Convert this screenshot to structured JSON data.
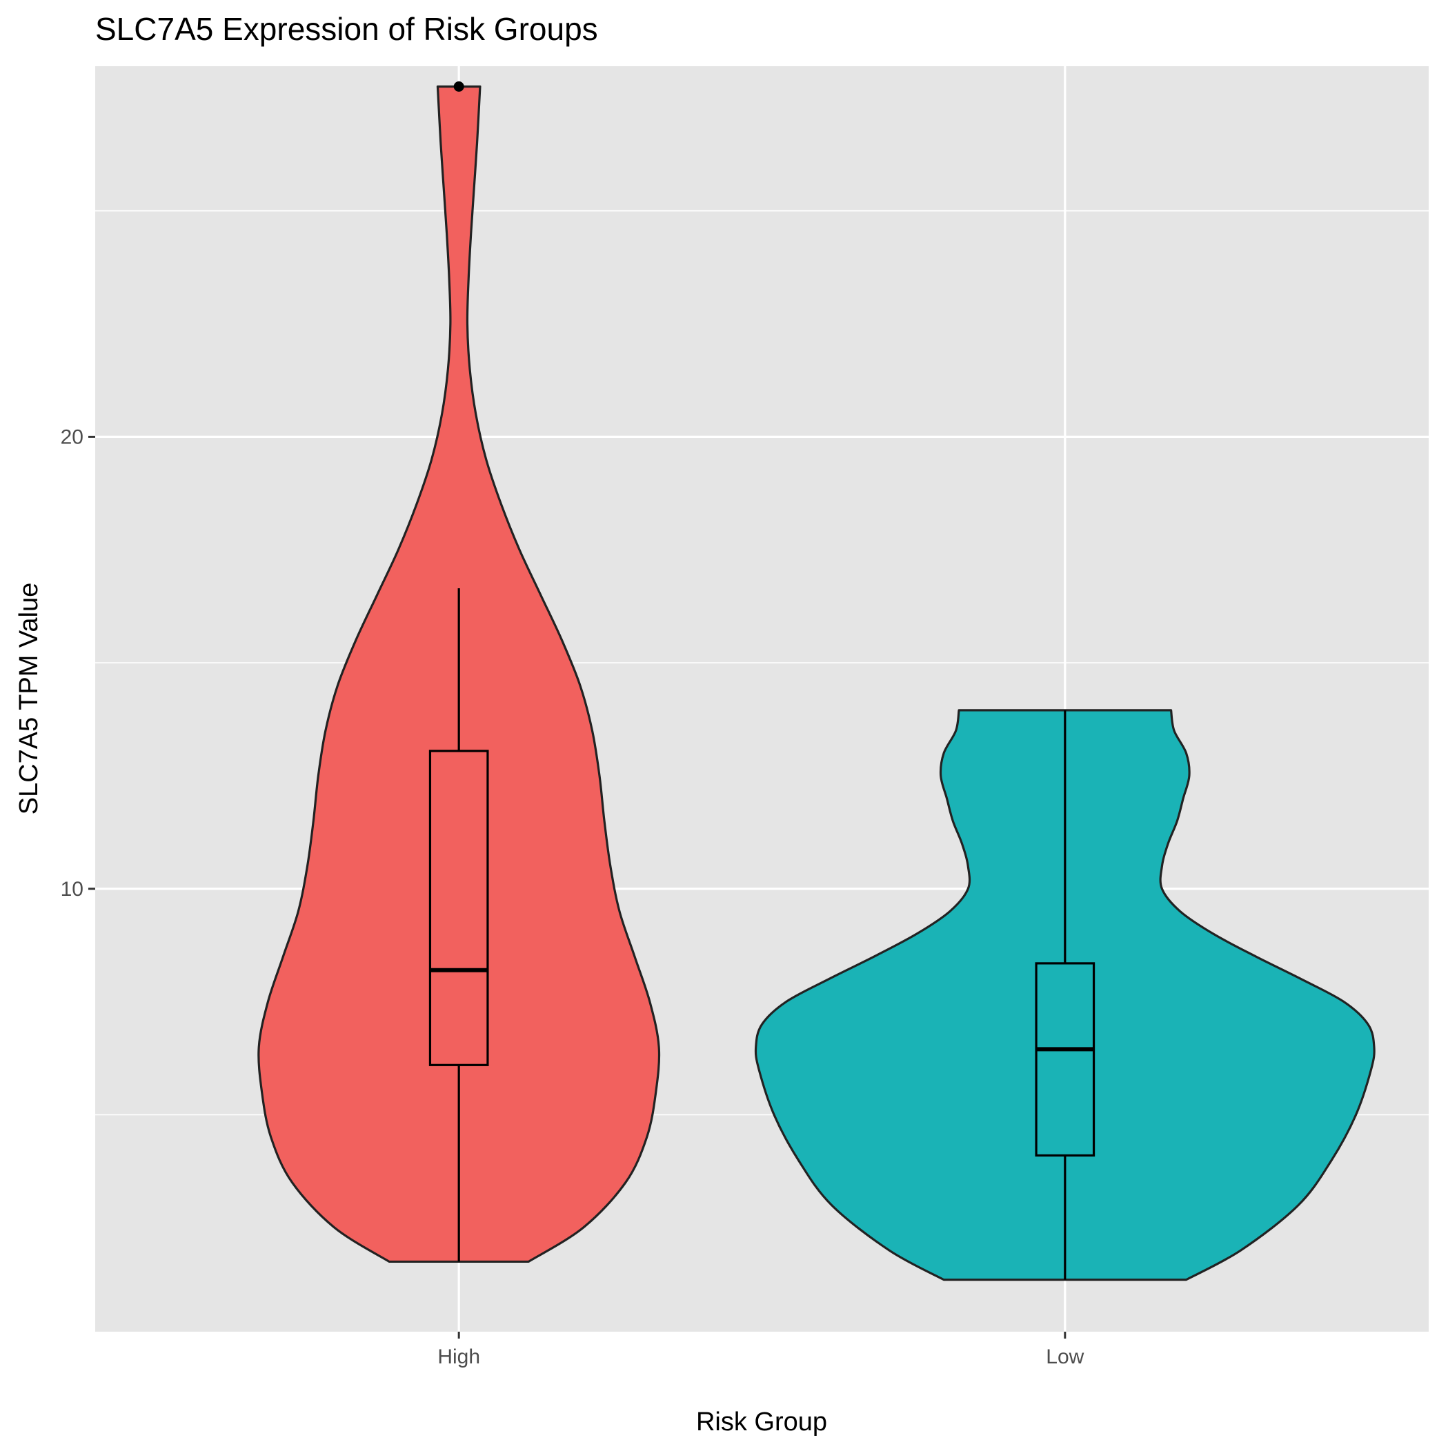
{
  "chart_data": {
    "type": "violin",
    "title": "SLC7A5 Expression of Risk Groups",
    "xlabel": "Risk Group",
    "ylabel": "SLC7A5 TPM Value",
    "categories": [
      "High",
      "Low"
    ],
    "ylim": [
      0.2,
      28.2
    ],
    "y_major_ticks": [
      10,
      20
    ],
    "y_minor_gridlines": [
      5,
      15,
      25
    ],
    "grid": true,
    "legend": "none",
    "colors": {
      "panel": "#e5e5e5",
      "grid": "#ffffff",
      "High": "#f2615e",
      "Low": "#1ab3b6",
      "outline": "#222222",
      "box": "#000000",
      "tick_label": "#4d4d4d"
    },
    "series": [
      {
        "category": "High",
        "box": {
          "min": 1.75,
          "q1": 6.1,
          "median": 8.2,
          "q3": 13.05,
          "max": 16.65
        },
        "outliers": [
          27.75
        ],
        "density": [
          {
            "y": 1.75,
            "w": 0.115
          },
          {
            "y": 2.5,
            "w": 0.205
          },
          {
            "y": 3.5,
            "w": 0.275
          },
          {
            "y": 4.5,
            "w": 0.31
          },
          {
            "y": 5.5,
            "w": 0.325
          },
          {
            "y": 6.5,
            "w": 0.33
          },
          {
            "y": 7.5,
            "w": 0.315
          },
          {
            "y": 8.5,
            "w": 0.29
          },
          {
            "y": 9.5,
            "w": 0.265
          },
          {
            "y": 10.5,
            "w": 0.25
          },
          {
            "y": 11.5,
            "w": 0.24
          },
          {
            "y": 12.5,
            "w": 0.232
          },
          {
            "y": 13.5,
            "w": 0.22
          },
          {
            "y": 14.5,
            "w": 0.2
          },
          {
            "y": 15.5,
            "w": 0.17
          },
          {
            "y": 16.5,
            "w": 0.135
          },
          {
            "y": 17.5,
            "w": 0.1
          },
          {
            "y": 18.5,
            "w": 0.07
          },
          {
            "y": 19.5,
            "w": 0.045
          },
          {
            "y": 20.5,
            "w": 0.028
          },
          {
            "y": 21.5,
            "w": 0.018
          },
          {
            "y": 22.5,
            "w": 0.014
          },
          {
            "y": 23.5,
            "w": 0.016
          },
          {
            "y": 24.5,
            "w": 0.02
          },
          {
            "y": 25.5,
            "w": 0.025
          },
          {
            "y": 26.5,
            "w": 0.03
          },
          {
            "y": 27.75,
            "w": 0.035
          }
        ]
      },
      {
        "category": "Low",
        "box": {
          "min": 1.35,
          "q1": 4.1,
          "median": 6.45,
          "q3": 8.35,
          "max": 13.95
        },
        "outliers": [],
        "density": [
          {
            "y": 1.35,
            "w": 0.2
          },
          {
            "y": 2.0,
            "w": 0.29
          },
          {
            "y": 3.0,
            "w": 0.385
          },
          {
            "y": 4.0,
            "w": 0.44
          },
          {
            "y": 5.0,
            "w": 0.48
          },
          {
            "y": 6.0,
            "w": 0.505
          },
          {
            "y": 6.5,
            "w": 0.51
          },
          {
            "y": 7.0,
            "w": 0.5
          },
          {
            "y": 7.5,
            "w": 0.46
          },
          {
            "y": 8.0,
            "w": 0.39
          },
          {
            "y": 8.5,
            "w": 0.315
          },
          {
            "y": 9.0,
            "w": 0.245
          },
          {
            "y": 9.5,
            "w": 0.19
          },
          {
            "y": 10.0,
            "w": 0.16
          },
          {
            "y": 10.5,
            "w": 0.16
          },
          {
            "y": 11.0,
            "w": 0.17
          },
          {
            "y": 11.5,
            "w": 0.185
          },
          {
            "y": 12.0,
            "w": 0.195
          },
          {
            "y": 12.5,
            "w": 0.205
          },
          {
            "y": 13.0,
            "w": 0.2
          },
          {
            "y": 13.5,
            "w": 0.18
          },
          {
            "y": 13.95,
            "w": 0.175
          }
        ]
      }
    ]
  }
}
